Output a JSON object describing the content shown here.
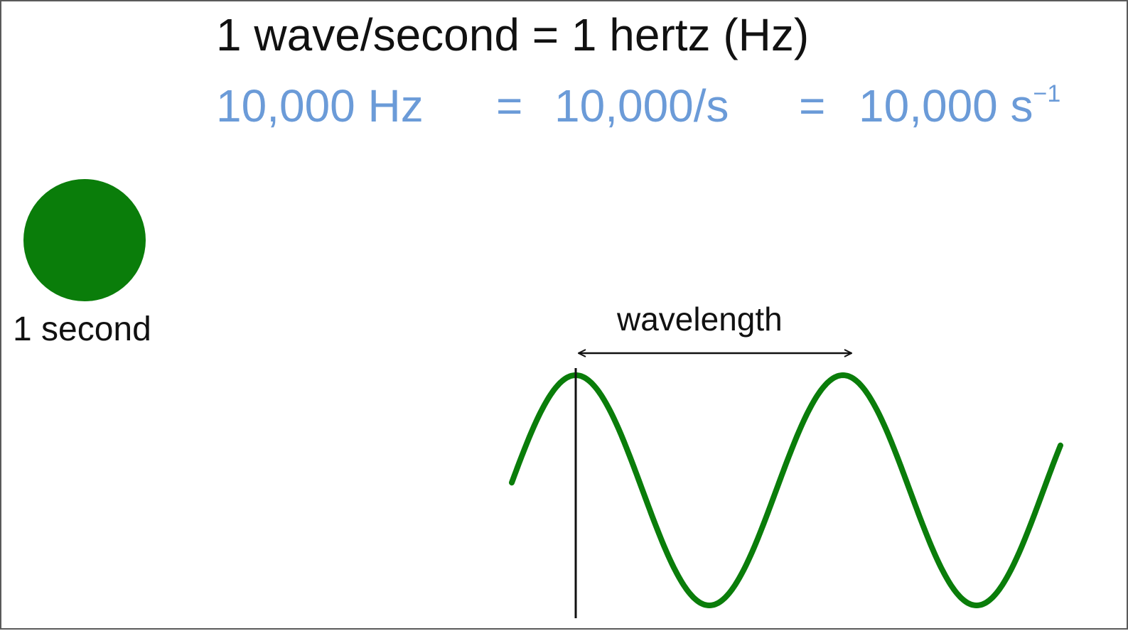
{
  "header": {
    "title": "1 wave/second = 1 hertz (Hz)"
  },
  "equation": {
    "hz": "10,000 Hz",
    "eq1": "=",
    "per_second": "10,000/s",
    "eq2": "=",
    "inverse_base": "10,000 s",
    "inverse_exp": "−1"
  },
  "timer": {
    "label": "1 second"
  },
  "wave": {
    "label": "wavelength"
  },
  "colors": {
    "equation_text": "#6b9bd8",
    "wave_and_dot": "#0a7d0a",
    "text": "#111111"
  }
}
